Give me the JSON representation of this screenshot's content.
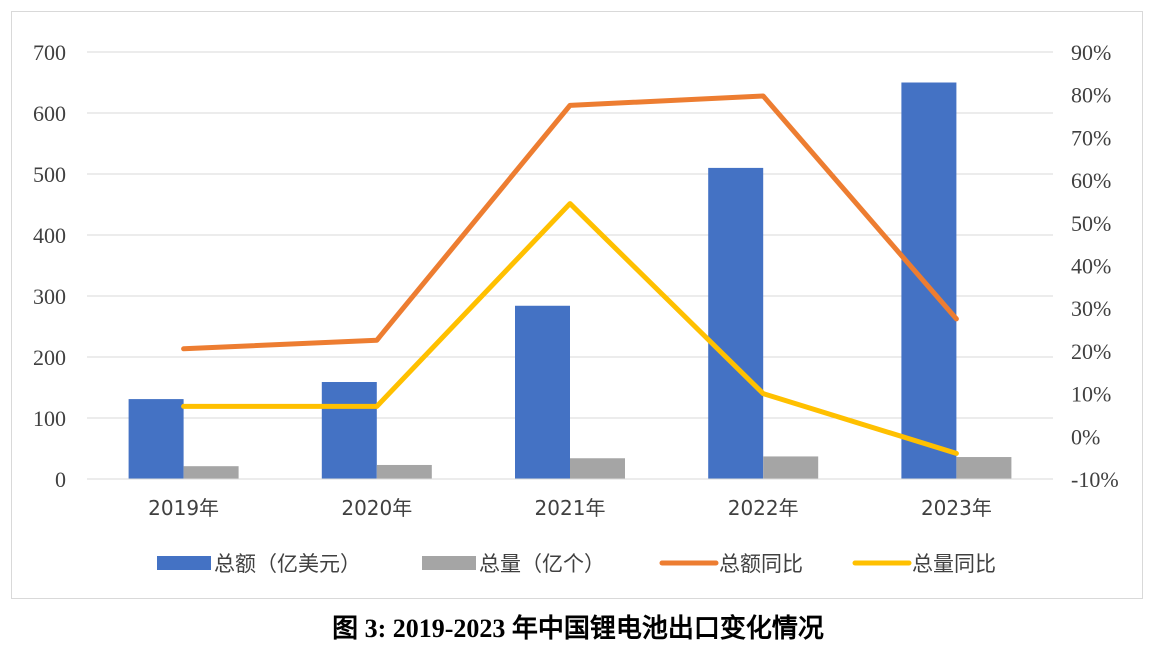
{
  "chart_data": {
    "type": "bar",
    "categories": [
      "2019年",
      "2020年",
      "2021年",
      "2022年",
      "2023年"
    ],
    "series": [
      {
        "name": "总额（亿美元）",
        "kind": "bar",
        "axis": "left",
        "color": "#4472C4",
        "values": [
          131,
          159,
          284,
          510,
          650
        ]
      },
      {
        "name": "总量（亿个）",
        "kind": "bar",
        "axis": "left",
        "color": "#A5A5A5",
        "values": [
          21,
          23,
          34,
          37,
          36
        ]
      },
      {
        "name": "总额同比",
        "kind": "line",
        "axis": "right",
        "color": "#ED7D31",
        "values": [
          20.5,
          22.5,
          77.5,
          79.7,
          27.5
        ]
      },
      {
        "name": "总量同比",
        "kind": "line",
        "axis": "right",
        "color": "#FFC000",
        "values": [
          7,
          7,
          54.5,
          10,
          -4
        ]
      }
    ],
    "y_left": {
      "min": 0,
      "max": 700,
      "ticks": [
        "0",
        "100",
        "200",
        "300",
        "400",
        "500",
        "600",
        "700"
      ]
    },
    "y_right": {
      "min": -10,
      "max": 90,
      "ticks": [
        "-10%",
        "0%",
        "10%",
        "20%",
        "30%",
        "40%",
        "50%",
        "60%",
        "70%",
        "80%",
        "90%"
      ]
    },
    "grid": true,
    "legend": "bottom"
  },
  "caption": "图 3: 2019-2023 年中国锂电池出口变化情况"
}
